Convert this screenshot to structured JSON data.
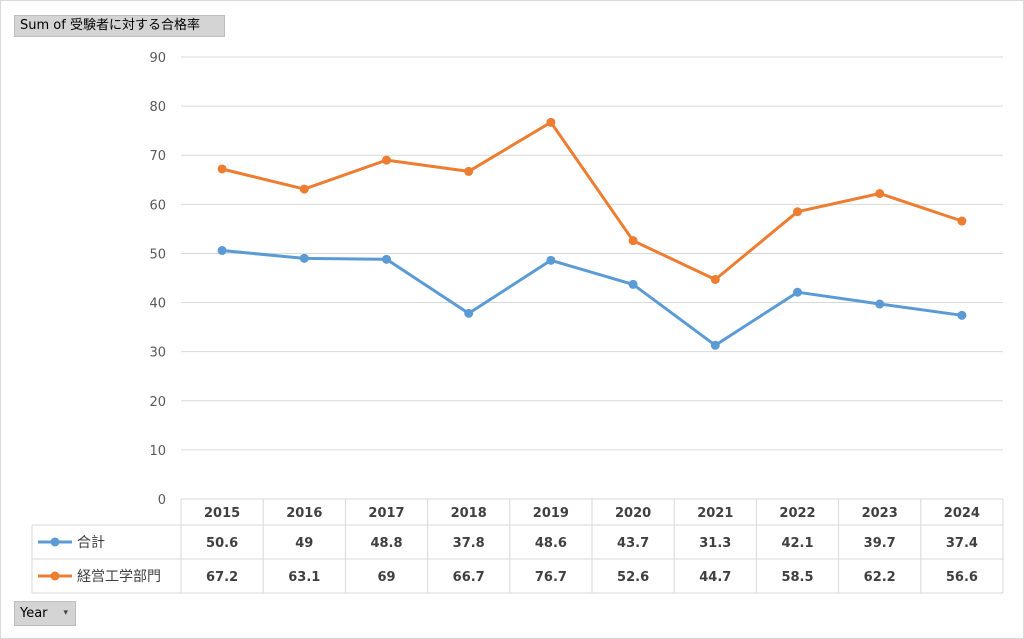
{
  "pivot": {
    "value_field": "Sum of 受験者に対する合格率",
    "axis_field": "Year"
  },
  "chart_data": {
    "type": "line",
    "categories": [
      "2015",
      "2016",
      "2017",
      "2018",
      "2019",
      "2020",
      "2021",
      "2022",
      "2023",
      "2024"
    ],
    "series": [
      {
        "name": "合計",
        "color": "#5b9bd5",
        "values": [
          50.6,
          49,
          48.8,
          37.8,
          48.6,
          43.7,
          31.3,
          42.1,
          39.7,
          37.4
        ]
      },
      {
        "name": "経営工学部門",
        "color": "#ed7d31",
        "values": [
          67.2,
          63.1,
          69,
          66.7,
          76.7,
          52.6,
          44.7,
          58.5,
          62.2,
          56.6
        ]
      }
    ],
    "ylim": [
      0,
      90
    ],
    "yticks": [
      0,
      10,
      20,
      30,
      40,
      50,
      60,
      70,
      80,
      90
    ],
    "grid": true,
    "data_table": true,
    "legend": "data-table-keys"
  }
}
